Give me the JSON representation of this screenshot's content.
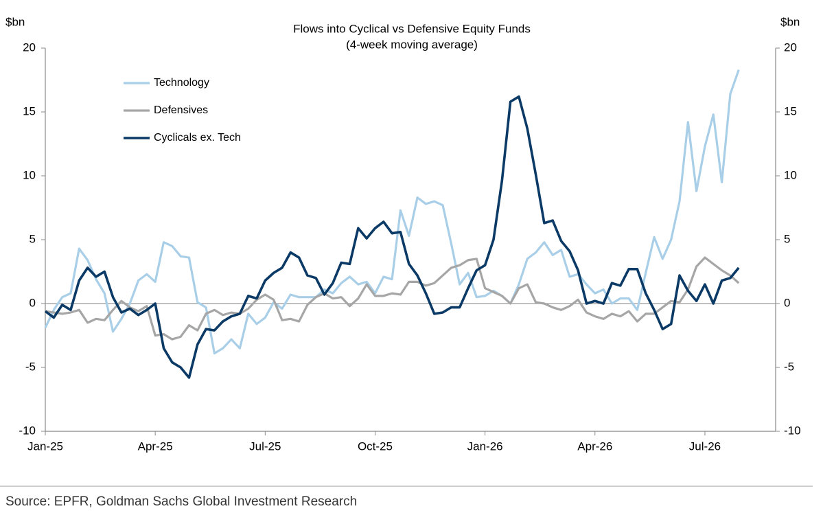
{
  "chart_data": {
    "type": "line",
    "title": "Flows into Cyclical vs Defensive Equity Funds",
    "subtitle": "(4-week moving average)",
    "y_label": "$bn",
    "y2_label": "$bn",
    "source": "Source: EPFR, Goldman Sachs Global Investment Research",
    "categories": [
      "Jan-25",
      null,
      null,
      null,
      null,
      null,
      null,
      null,
      null,
      null,
      null,
      null,
      null,
      "Apr-25",
      null,
      null,
      null,
      null,
      null,
      null,
      null,
      null,
      null,
      null,
      null,
      null,
      "Jul-25",
      null,
      null,
      null,
      null,
      null,
      null,
      null,
      null,
      null,
      null,
      null,
      null,
      "Oct-25",
      null,
      null,
      null,
      null,
      null,
      null,
      null,
      null,
      null,
      null,
      null,
      null,
      "Jan-26",
      null,
      null,
      null,
      null,
      null,
      null,
      null,
      null,
      null,
      null,
      null,
      null,
      "Apr-26",
      null,
      null,
      null,
      null,
      null,
      null,
      null,
      null,
      null,
      null,
      null,
      null,
      "Jul-26",
      null,
      null,
      null,
      null
    ],
    "series": [
      {
        "name": "Technology",
        "color": "#a9cfe8",
        "values": [
          -1.9,
          -0.5,
          0.5,
          0.8,
          4.3,
          3.4,
          1.9,
          0.8,
          -2.2,
          -1.2,
          0,
          1.8,
          2.3,
          1.7,
          4.8,
          4.5,
          3.7,
          3.6,
          0.1,
          -0.3,
          -3.9,
          -3.5,
          -2.8,
          -3.5,
          -0.8,
          -1.6,
          -1.1,
          0.1,
          -0.4,
          0.7,
          0.5,
          0.5,
          0.5,
          1.1,
          0.8,
          1.6,
          2.1,
          1.5,
          1.7,
          0.8,
          2.1,
          1.9,
          7.3,
          5.3,
          8.3,
          7.8,
          8.0,
          7.7,
          4.7,
          1.5,
          2.4,
          0.5,
          0.6,
          1.0,
          0.6,
          0,
          1.5,
          3.5,
          4.0,
          4.8,
          3.8,
          4.2,
          2.1,
          2.3,
          1.5,
          0.8,
          1.1,
          0,
          0.4,
          0.4,
          -0.5,
          2.4,
          5.2,
          3.5,
          5.0,
          8.0,
          14.2,
          8.8,
          12.3,
          14.8,
          9.5,
          16.4,
          18.3
        ]
      },
      {
        "name": "Defensives",
        "color": "#a6a6a6",
        "values": [
          -0.6,
          -0.7,
          -0.8,
          -0.7,
          -0.5,
          -1.5,
          -1.2,
          -1.3,
          -0.5,
          0.2,
          -0.3,
          -0.6,
          -0.2,
          -2.5,
          -2.4,
          -2.8,
          -2.6,
          -1.7,
          -2.1,
          -0.8,
          -0.5,
          -0.9,
          -0.7,
          -0.8,
          -0.4,
          0.3,
          0.7,
          0.3,
          -1.3,
          -1.2,
          -1.4,
          -0.1,
          0.5,
          0.8,
          0.4,
          0.5,
          -0.2,
          0.4,
          1.5,
          0.6,
          0.6,
          0.8,
          0.7,
          1.7,
          1.7,
          1.4,
          1.6,
          2.2,
          2.8,
          3.0,
          3.4,
          3.5,
          1.2,
          0.9,
          0.6,
          0,
          1.2,
          1.5,
          0.1,
          0,
          -0.3,
          -0.5,
          -0.2,
          0.3,
          -0.7,
          -1.0,
          -1.2,
          -0.8,
          -1.0,
          -0.6,
          -1.4,
          -0.8,
          -0.8,
          -0.3,
          0.2,
          0.1,
          1.1,
          2.9,
          3.6,
          3.1,
          2.6,
          2.2,
          1.6
        ]
      },
      {
        "name": "Cyclicals ex. Tech",
        "color": "#0b3a66",
        "values": [
          -0.6,
          -1.1,
          -0.1,
          -0.5,
          1.8,
          2.8,
          2.1,
          2.5,
          0.5,
          -0.7,
          -0.4,
          -0.9,
          -0.5,
          0,
          -3.5,
          -4.6,
          -5.0,
          -5.8,
          -3.2,
          -2.0,
          -2.1,
          -1.4,
          -1.0,
          -0.8,
          0.6,
          0.4,
          1.8,
          2.4,
          2.8,
          4.0,
          3.6,
          2.2,
          2.0,
          0.7,
          1.6,
          3.2,
          3.1,
          5.9,
          5.1,
          5.9,
          6.4,
          5.5,
          5.6,
          3.1,
          2.2,
          0.8,
          -0.8,
          -0.7,
          -0.3,
          -0.3,
          1.2,
          2.6,
          3.0,
          5.0,
          9.6,
          15.8,
          16.2,
          13.7,
          10.1,
          6.3,
          6.5,
          4.9,
          4.1,
          2.6,
          0,
          0.2,
          0,
          1.6,
          1.4,
          2.7,
          2.7,
          0.8,
          -0.5,
          -2.0,
          -1.6,
          2.2,
          1.0,
          0.2,
          1.5,
          0,
          1.8,
          2.0,
          2.8
        ]
      }
    ],
    "ylim": [
      -10,
      20
    ],
    "yticks": [
      -10,
      -5,
      0,
      5,
      10,
      15,
      20
    ],
    "y2lim": [
      -10,
      20
    ],
    "y2ticks": [
      -10,
      -5,
      0,
      5,
      10,
      15,
      20
    ],
    "legend": "upper left"
  }
}
